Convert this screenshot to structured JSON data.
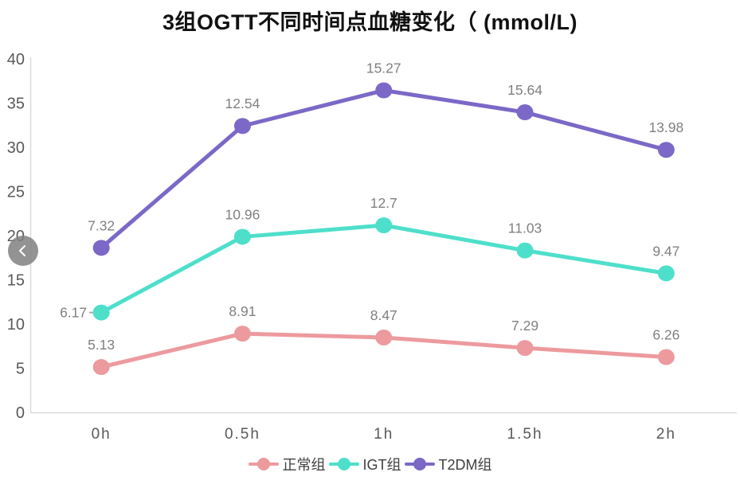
{
  "title": "3组OGTT不同时间点血糖变化（ (mmol/L)",
  "carousel": {
    "prev_icon": "chevron-left"
  },
  "chart_data": {
    "type": "line",
    "stacking": "cumulative",
    "title": "3组OGTT不同时间点血糖变化（ (mmol/L)",
    "categories": [
      "0h",
      "0.5h",
      "1h",
      "1.5h",
      "2h"
    ],
    "series": [
      {
        "name": "正常组",
        "color": "#EC9A9E",
        "values": [
          5.13,
          8.91,
          8.47,
          7.29,
          6.26
        ]
      },
      {
        "name": "IGT组",
        "color": "#4EDFCB",
        "values": [
          6.17,
          10.96,
          12.7,
          11.03,
          9.47
        ]
      },
      {
        "name": "T2DM组",
        "color": "#7B68C7",
        "values": [
          7.32,
          12.54,
          15.27,
          15.64,
          13.98
        ]
      }
    ],
    "ylim": [
      0,
      40
    ],
    "yticks": [
      0,
      5,
      10,
      15,
      20,
      25,
      30,
      35,
      40
    ],
    "xlabel": "",
    "ylabel": "",
    "grid": false,
    "legend_position": "bottom",
    "data_labels": "raw series values shown at markers",
    "label_overrides": [
      {
        "series": 1,
        "index": 0,
        "position": "left",
        "leader": true
      }
    ],
    "colors": {
      "axis_line": "#D9D9D9",
      "axis_text": "#595959",
      "label_text": "#808080",
      "leader_line": "#A6A6A6"
    }
  }
}
